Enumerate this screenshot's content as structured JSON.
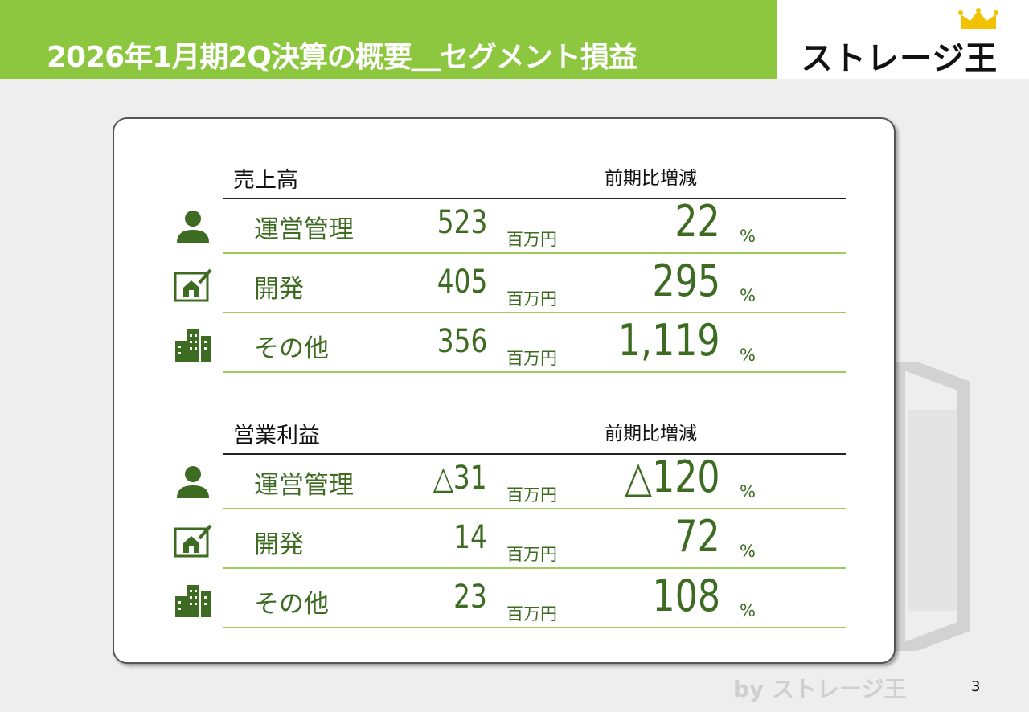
{
  "header": {
    "title": "2026年1月期2Q決算の概要＿セグメント損益",
    "logo_text": "ストレージ王"
  },
  "colors": {
    "accent_green": "#8dc63f",
    "text_green": "#3d6b22",
    "row_rule": "#9fca5c"
  },
  "icons": [
    "operator-icon",
    "house-plan-icon",
    "buildings-icon"
  ],
  "sales": {
    "title": "売上高",
    "change_header": "前期比増減",
    "rows": [
      {
        "label": "運営管理",
        "value": "523",
        "unit": "百万円",
        "change": "22",
        "pct": "%"
      },
      {
        "label": "開発",
        "value": "405",
        "unit": "百万円",
        "change": "295",
        "pct": "%"
      },
      {
        "label": "その他",
        "value": "356",
        "unit": "百万円",
        "change": "1,119",
        "pct": "%"
      }
    ]
  },
  "profit": {
    "title": "営業利益",
    "change_header": "前期比増減",
    "rows": [
      {
        "label": "運営管理",
        "value": "△31",
        "unit": "百万円",
        "change": "△120",
        "pct": "%"
      },
      {
        "label": "開発",
        "value": "14",
        "unit": "百万円",
        "change": "72",
        "pct": "%"
      },
      {
        "label": "その他",
        "value": "23",
        "unit": "百万円",
        "change": "108",
        "pct": "%"
      }
    ]
  },
  "footer": {
    "brand": "by ストレージ王",
    "page_number": "3"
  }
}
